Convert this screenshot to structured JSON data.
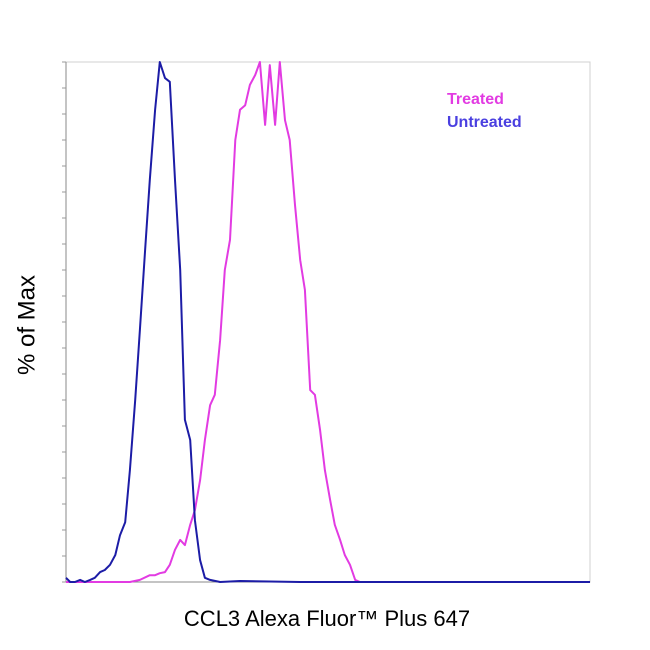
{
  "chart_data": {
    "type": "line",
    "x_label": "CCL3 Alexa Fluor™ Plus 647",
    "y_label": "% of Max",
    "xlim": [
      0,
      100
    ],
    "ylim": [
      0,
      100
    ],
    "yticks": [
      0,
      5,
      10,
      15,
      20,
      25,
      30,
      35,
      40,
      45,
      50,
      55,
      60,
      65,
      70,
      75,
      80,
      85,
      90,
      95,
      100
    ],
    "legend": "top-right",
    "series": [
      {
        "name": "Treated",
        "color": "#e23be2",
        "x": [
          0,
          12.2,
          14.1,
          16.0,
          17.0,
          17.9,
          18.9,
          19.8,
          20.8,
          21.8,
          22.7,
          23.7,
          24.6,
          25.6,
          26.5,
          27.5,
          28.4,
          29.4,
          30.3,
          31.3,
          32.3,
          33.2,
          34.2,
          35.1,
          36.1,
          37.0,
          38.0,
          38.9,
          39.9,
          40.8,
          41.8,
          42.7,
          43.7,
          44.7,
          45.6,
          46.6,
          47.5,
          48.5,
          49.4,
          50.4,
          51.3,
          52.3,
          53.2,
          54.2,
          55.2,
          56.1,
          100
        ],
        "values": [
          0,
          0,
          0.4,
          1.3,
          1.3,
          1.7,
          1.9,
          3.3,
          6.2,
          8.1,
          7.1,
          11.0,
          13.8,
          19.6,
          27.3,
          34.0,
          36.0,
          46.5,
          60.0,
          65.8,
          85.0,
          90.8,
          91.7,
          95.6,
          97.5,
          100,
          87.9,
          99.4,
          87.9,
          100,
          88.8,
          85.0,
          72.5,
          61.9,
          56.2,
          36.9,
          36.0,
          29.2,
          21.5,
          15.8,
          11.0,
          8.1,
          5.2,
          3.3,
          0.4,
          0,
          0
        ]
      },
      {
        "name": "Untreated",
        "color": "#1c1ca6",
        "legend_color": "#4a3fe0",
        "x": [
          0,
          0.8,
          1.7,
          2.7,
          3.6,
          4.6,
          5.5,
          6.5,
          7.4,
          8.4,
          9.4,
          10.3,
          11.3,
          12.2,
          13.2,
          14.1,
          15.1,
          16.0,
          17.0,
          17.9,
          18.9,
          19.8,
          20.8,
          21.8,
          22.7,
          23.7,
          24.6,
          25.6,
          26.5,
          27.5,
          29.4,
          33.2,
          44.7,
          100
        ],
        "values": [
          0.8,
          0,
          0,
          0.4,
          0,
          0.4,
          0.8,
          1.9,
          2.3,
          3.3,
          5.2,
          9.0,
          11.5,
          21.5,
          35.0,
          48.5,
          63.8,
          77.3,
          90.8,
          100,
          96.9,
          96.2,
          77.3,
          60.0,
          31.2,
          27.3,
          11.9,
          4.2,
          0.8,
          0.4,
          0,
          0.2,
          0,
          0
        ]
      }
    ]
  }
}
